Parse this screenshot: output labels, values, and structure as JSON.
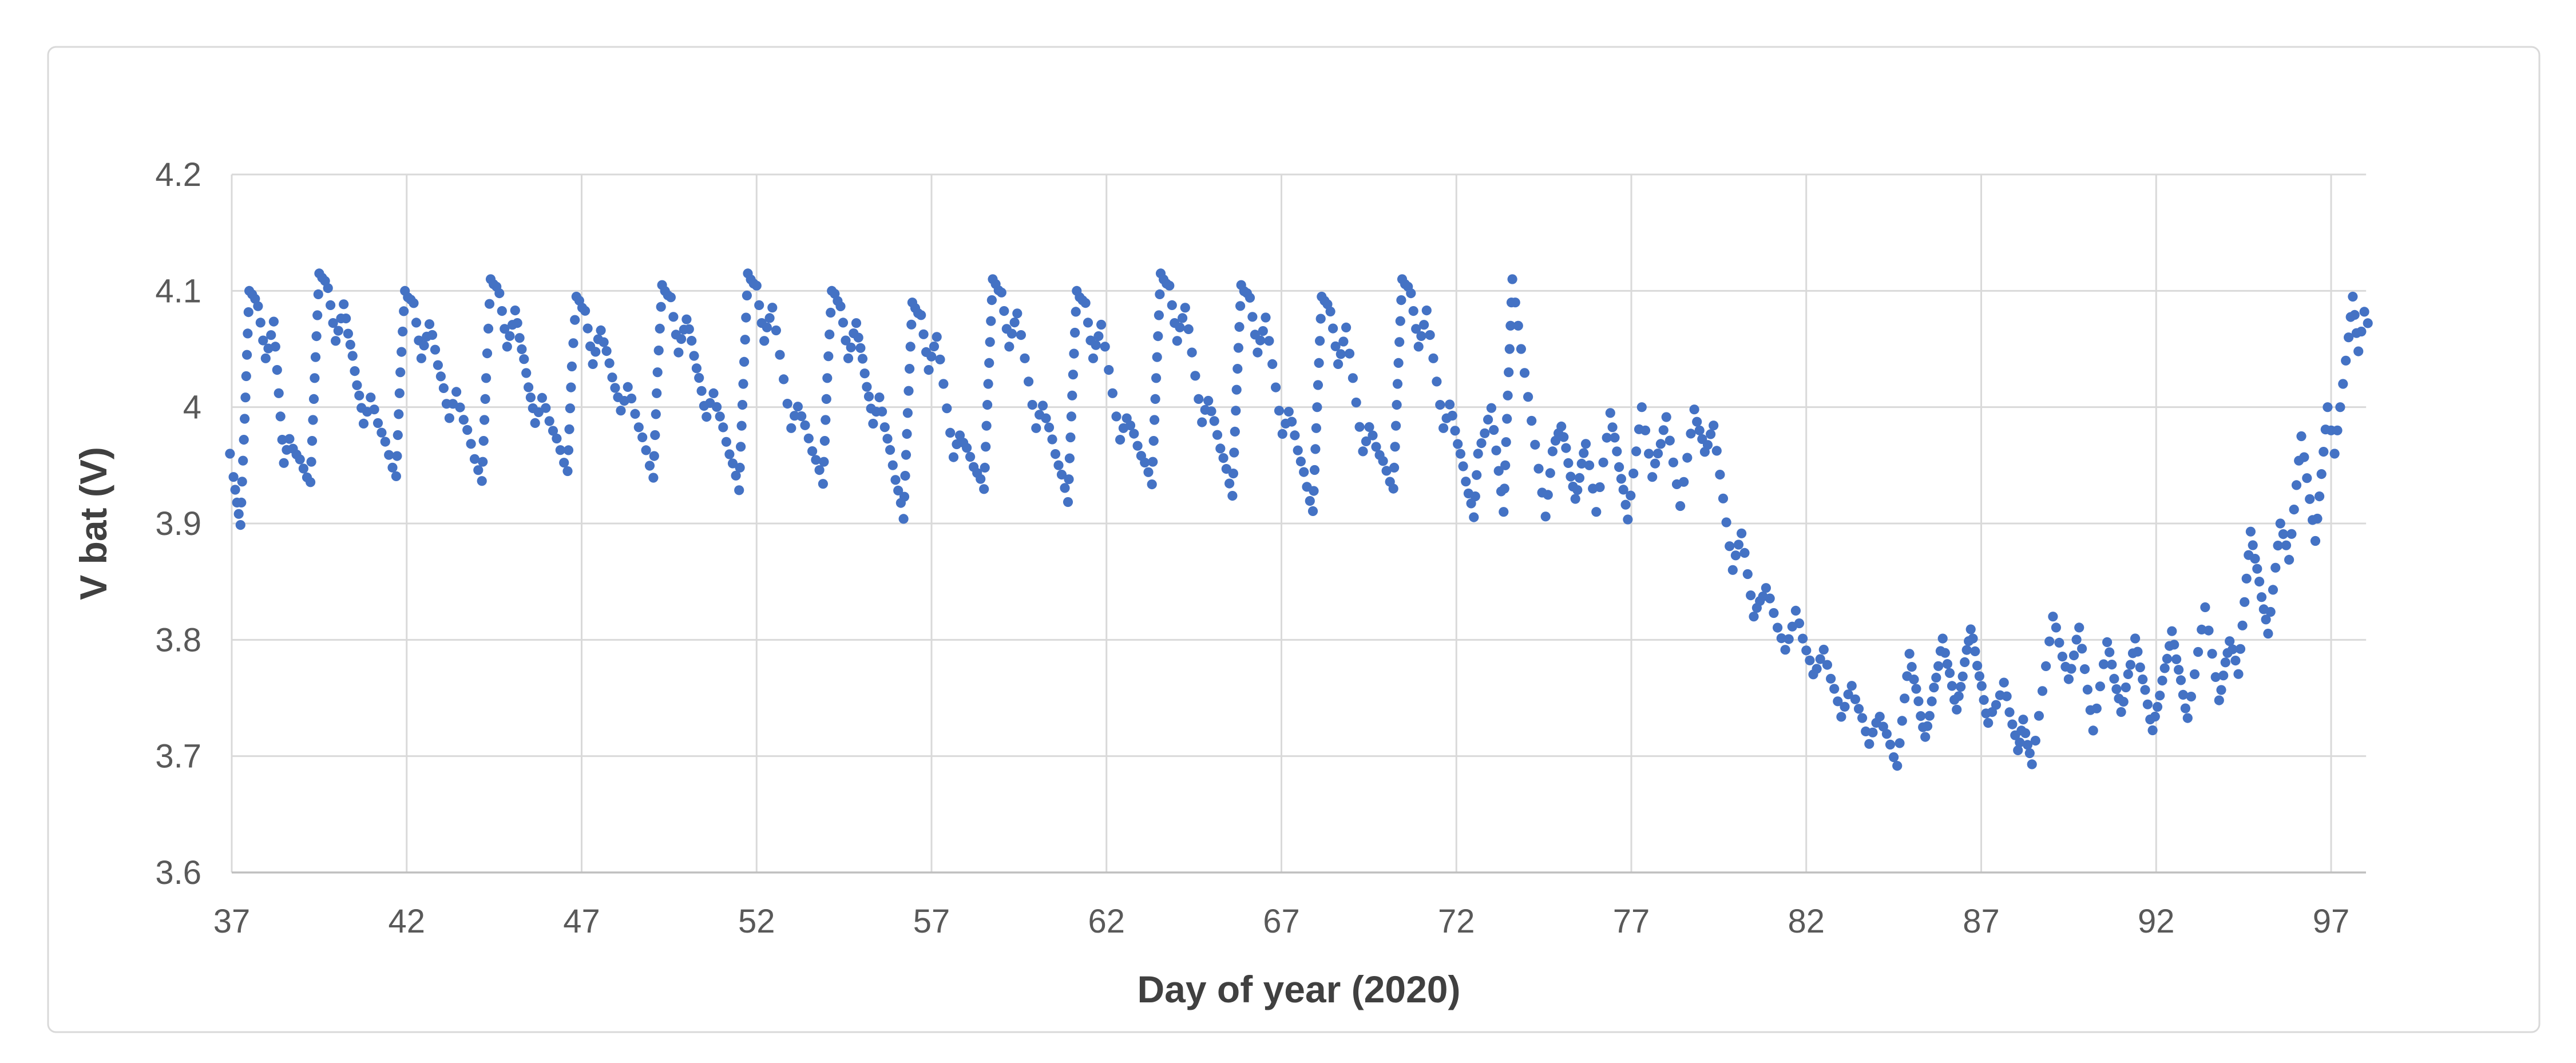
{
  "chart_data": {
    "type": "scatter",
    "title": "",
    "xlabel": "Day of year (2020)",
    "ylabel": "V bat (V)",
    "xlim": [
      37,
      98
    ],
    "ylim": [
      3.6,
      4.2
    ],
    "x_ticks": [
      37,
      42,
      47,
      52,
      57,
      62,
      67,
      72,
      77,
      82,
      87,
      92,
      97
    ],
    "y_ticks": [
      3.6,
      3.7,
      3.8,
      3.9,
      4.0,
      4.1,
      4.2
    ],
    "y_tick_labels": [
      "3.6",
      "3.7",
      "3.8",
      "3.9",
      "4",
      "4.1",
      "4.2"
    ],
    "grid": true,
    "legend": "none",
    "marker": "circle",
    "marker_color": "#4472C4",
    "series": [
      {
        "name": "V bat",
        "points": [
          [
            36.95,
            3.96
          ],
          [
            37.05,
            3.94
          ],
          [
            37.15,
            3.918
          ],
          [
            37.25,
            3.9
          ],
          [
            37.37,
            3.99
          ],
          [
            37.5,
            4.1
          ],
          [
            37.75,
            4.088
          ],
          [
            37.97,
            4.042
          ],
          [
            38.2,
            4.072
          ],
          [
            38.49,
            3.952
          ],
          [
            38.65,
            3.972
          ],
          [
            39.25,
            3.935
          ],
          [
            39.37,
            4.025
          ],
          [
            39.5,
            4.115
          ],
          [
            39.75,
            4.103
          ],
          [
            39.97,
            4.057
          ],
          [
            40.2,
            4.087
          ],
          [
            40.77,
            3.987
          ],
          [
            40.97,
            4.007
          ],
          [
            41.7,
            3.94
          ],
          [
            41.82,
            4.03
          ],
          [
            41.95,
            4.1
          ],
          [
            42.2,
            4.088
          ],
          [
            42.42,
            4.042
          ],
          [
            42.65,
            4.072
          ],
          [
            43.22,
            3.992
          ],
          [
            43.42,
            4.012
          ],
          [
            44.15,
            3.935
          ],
          [
            44.27,
            4.025
          ],
          [
            44.4,
            4.11
          ],
          [
            44.65,
            4.098
          ],
          [
            44.87,
            4.052
          ],
          [
            45.1,
            4.082
          ],
          [
            45.67,
            3.987
          ],
          [
            45.87,
            4.007
          ],
          [
            46.6,
            3.945
          ],
          [
            46.72,
            4.035
          ],
          [
            46.85,
            4.095
          ],
          [
            47.1,
            4.083
          ],
          [
            47.32,
            4.037
          ],
          [
            47.55,
            4.067
          ],
          [
            48.12,
            3.997
          ],
          [
            48.32,
            4.017
          ],
          [
            49.05,
            3.94
          ],
          [
            49.17,
            4.03
          ],
          [
            49.3,
            4.105
          ],
          [
            49.55,
            4.093
          ],
          [
            49.77,
            4.047
          ],
          [
            50.0,
            4.077
          ],
          [
            50.57,
            3.992
          ],
          [
            50.77,
            4.012
          ],
          [
            51.5,
            3.93
          ],
          [
            51.62,
            4.02
          ],
          [
            51.75,
            4.115
          ],
          [
            52.0,
            4.103
          ],
          [
            52.22,
            4.057
          ],
          [
            52.45,
            4.087
          ],
          [
            52.99,
            3.982
          ],
          [
            53.18,
            4.002
          ],
          [
            53.9,
            3.935
          ],
          [
            54.02,
            4.025
          ],
          [
            54.15,
            4.1
          ],
          [
            54.4,
            4.088
          ],
          [
            54.62,
            4.042
          ],
          [
            54.85,
            4.072
          ],
          [
            55.33,
            3.987
          ],
          [
            55.51,
            4.007
          ],
          [
            56.2,
            3.905
          ],
          [
            56.32,
            3.995
          ],
          [
            56.45,
            4.09
          ],
          [
            56.7,
            4.078
          ],
          [
            56.92,
            4.032
          ],
          [
            57.15,
            4.062
          ],
          [
            57.63,
            3.957
          ],
          [
            57.81,
            3.977
          ],
          [
            58.5,
            3.93
          ],
          [
            58.62,
            4.02
          ],
          [
            58.75,
            4.11
          ],
          [
            59.0,
            4.098
          ],
          [
            59.22,
            4.052
          ],
          [
            59.45,
            4.082
          ],
          [
            59.99,
            3.982
          ],
          [
            60.18,
            4.002
          ],
          [
            60.9,
            3.92
          ],
          [
            61.02,
            4.01
          ],
          [
            61.15,
            4.1
          ],
          [
            61.4,
            4.088
          ],
          [
            61.62,
            4.042
          ],
          [
            61.85,
            4.072
          ],
          [
            62.39,
            3.972
          ],
          [
            62.58,
            3.992
          ],
          [
            63.3,
            3.935
          ],
          [
            63.42,
            4.025
          ],
          [
            63.55,
            4.115
          ],
          [
            63.8,
            4.103
          ],
          [
            64.02,
            4.057
          ],
          [
            64.25,
            4.087
          ],
          [
            64.73,
            3.987
          ],
          [
            64.91,
            4.007
          ],
          [
            65.6,
            3.925
          ],
          [
            65.72,
            4.015
          ],
          [
            65.85,
            4.105
          ],
          [
            66.1,
            4.093
          ],
          [
            66.32,
            4.047
          ],
          [
            66.55,
            4.077
          ],
          [
            67.03,
            3.977
          ],
          [
            67.21,
            3.997
          ],
          [
            67.9,
            3.91
          ],
          [
            68.02,
            4.0
          ],
          [
            68.15,
            4.095
          ],
          [
            68.4,
            4.083
          ],
          [
            68.62,
            4.037
          ],
          [
            68.85,
            4.067
          ],
          [
            69.33,
            3.962
          ],
          [
            69.51,
            3.982
          ],
          [
            70.2,
            3.93
          ],
          [
            70.32,
            4.02
          ],
          [
            70.45,
            4.11
          ],
          [
            70.7,
            4.098
          ],
          [
            70.92,
            4.052
          ],
          [
            71.15,
            4.082
          ],
          [
            71.63,
            3.982
          ],
          [
            71.81,
            4.002
          ],
          [
            72.5,
            3.905
          ],
          [
            72.62,
            3.96
          ],
          [
            73.0,
            3.998
          ],
          [
            73.35,
            3.91
          ],
          [
            73.47,
            4.01
          ],
          [
            73.6,
            4.11
          ],
          [
            73.85,
            4.05
          ],
          [
            74.55,
            3.906
          ],
          [
            74.75,
            3.962
          ],
          [
            75.0,
            3.985
          ],
          [
            75.4,
            3.92
          ],
          [
            75.7,
            3.97
          ],
          [
            76.0,
            3.91
          ],
          [
            76.4,
            3.995
          ],
          [
            76.9,
            3.905
          ],
          [
            77.3,
            4.0
          ],
          [
            77.6,
            3.94
          ],
          [
            78.0,
            3.99
          ],
          [
            78.4,
            3.915
          ],
          [
            78.8,
            3.998
          ],
          [
            79.1,
            3.962
          ],
          [
            79.35,
            3.983
          ],
          [
            79.9,
            3.86
          ],
          [
            80.15,
            3.893
          ],
          [
            80.5,
            3.82
          ],
          [
            80.85,
            3.845
          ],
          [
            81.4,
            3.79
          ],
          [
            81.7,
            3.824
          ],
          [
            82.2,
            3.77
          ],
          [
            82.5,
            3.79
          ],
          [
            83.0,
            3.735
          ],
          [
            83.3,
            3.76
          ],
          [
            83.8,
            3.712
          ],
          [
            84.1,
            3.735
          ],
          [
            84.6,
            3.692
          ],
          [
            84.95,
            3.788
          ],
          [
            85.4,
            3.715
          ],
          [
            85.9,
            3.8
          ],
          [
            86.3,
            3.74
          ],
          [
            86.7,
            3.81
          ],
          [
            87.2,
            3.728
          ],
          [
            87.65,
            3.762
          ],
          [
            88.05,
            3.705
          ],
          [
            88.2,
            3.73
          ],
          [
            88.45,
            3.692
          ],
          [
            89.05,
            3.82
          ],
          [
            89.5,
            3.765
          ],
          [
            89.8,
            3.81
          ],
          [
            90.2,
            3.722
          ],
          [
            90.6,
            3.798
          ],
          [
            91.0,
            3.738
          ],
          [
            91.4,
            3.8
          ],
          [
            91.9,
            3.722
          ],
          [
            92.45,
            3.806
          ],
          [
            92.9,
            3.732
          ],
          [
            93.4,
            3.828
          ],
          [
            93.8,
            3.748
          ],
          [
            94.1,
            3.8
          ],
          [
            94.35,
            3.772
          ],
          [
            94.7,
            3.893
          ],
          [
            95.2,
            3.805
          ],
          [
            95.55,
            3.9
          ],
          [
            95.8,
            3.87
          ],
          [
            96.15,
            3.975
          ],
          [
            96.55,
            3.885
          ],
          [
            96.9,
            4.0
          ],
          [
            97.1,
            3.96
          ],
          [
            97.5,
            4.06
          ],
          [
            97.62,
            4.095
          ],
          [
            97.78,
            4.048
          ],
          [
            97.95,
            4.082
          ],
          [
            98.05,
            4.072
          ]
        ]
      }
    ],
    "annotations": []
  },
  "colors": {
    "marker": "#4472C4",
    "gridline": "#D9D9D9",
    "axis_line": "#BFBFBF",
    "tick_label": "#595959",
    "axis_title": "#404040",
    "chart_border": "#D9D9D9",
    "background": "#FFFFFF"
  }
}
